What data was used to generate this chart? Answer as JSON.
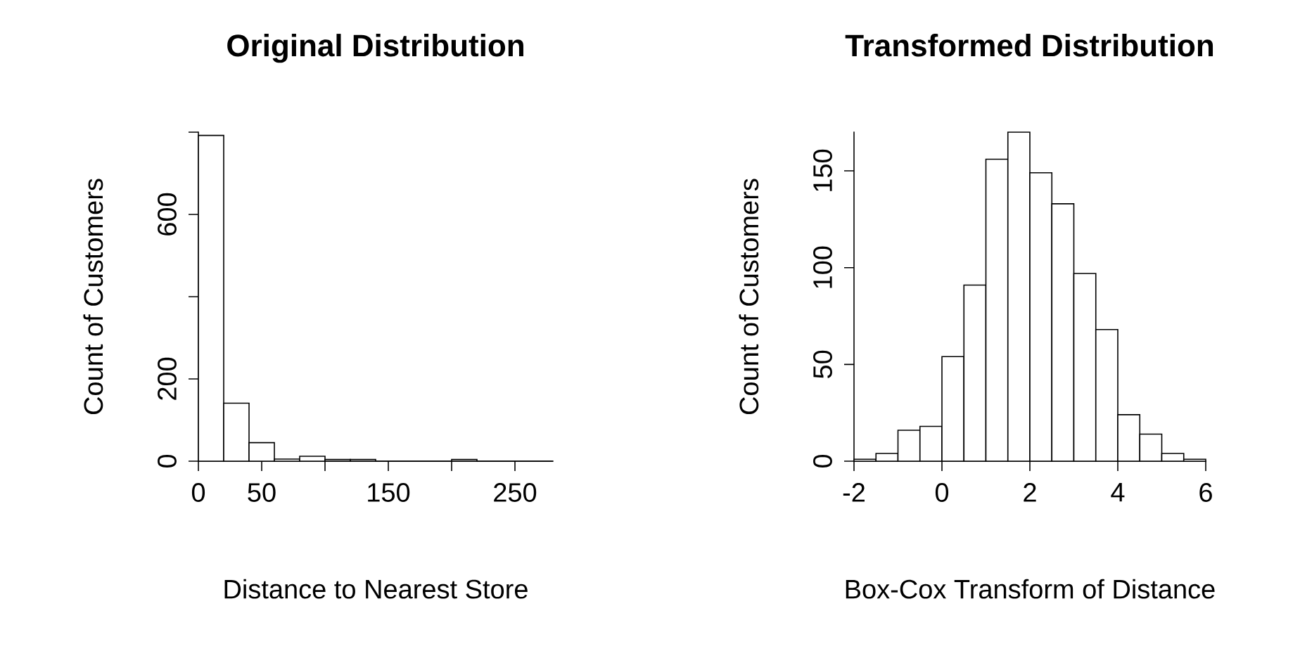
{
  "chart_data": [
    {
      "type": "histogram",
      "title": "Original Distribution",
      "xlabel": "Distance to Nearest Store",
      "ylabel": "Count of Customers",
      "color": "#ffffff",
      "bins": [
        0,
        20,
        40,
        60,
        80,
        100,
        120,
        140,
        160,
        180,
        200,
        220,
        240,
        260,
        280
      ],
      "values": [
        792,
        141,
        45,
        5,
        12,
        4,
        4,
        0,
        0,
        0,
        4,
        0,
        0,
        0
      ],
      "xlim": [
        0,
        280
      ],
      "ylim": [
        0,
        800
      ],
      "xticks": [
        0,
        50,
        {
          "value": 100,
          "label": null
        },
        150,
        {
          "value": 200,
          "label": null
        },
        250
      ],
      "yticks": [
        0,
        200,
        {
          "value": 400,
          "label": null
        },
        600,
        {
          "value": 800,
          "label": null
        }
      ]
    },
    {
      "type": "histogram",
      "title": "Transformed Distribution",
      "xlabel": "Box-Cox Transform of Distance",
      "ylabel": "Count of Customers",
      "color": "#ffffff",
      "bins": [
        -2,
        -1.5,
        -1,
        -0.5,
        0,
        0.5,
        1,
        1.5,
        2,
        2.5,
        3,
        3.5,
        4,
        4.5,
        5,
        5.5,
        6
      ],
      "values": [
        1,
        4,
        16,
        18,
        54,
        91,
        156,
        170,
        149,
        133,
        97,
        68,
        24,
        14,
        4,
        1
      ],
      "xlim": [
        -2,
        6
      ],
      "ylim": [
        0,
        170
      ],
      "xticks": [
        -2,
        0,
        2,
        4,
        6
      ],
      "yticks": [
        0,
        50,
        100,
        150
      ]
    }
  ]
}
